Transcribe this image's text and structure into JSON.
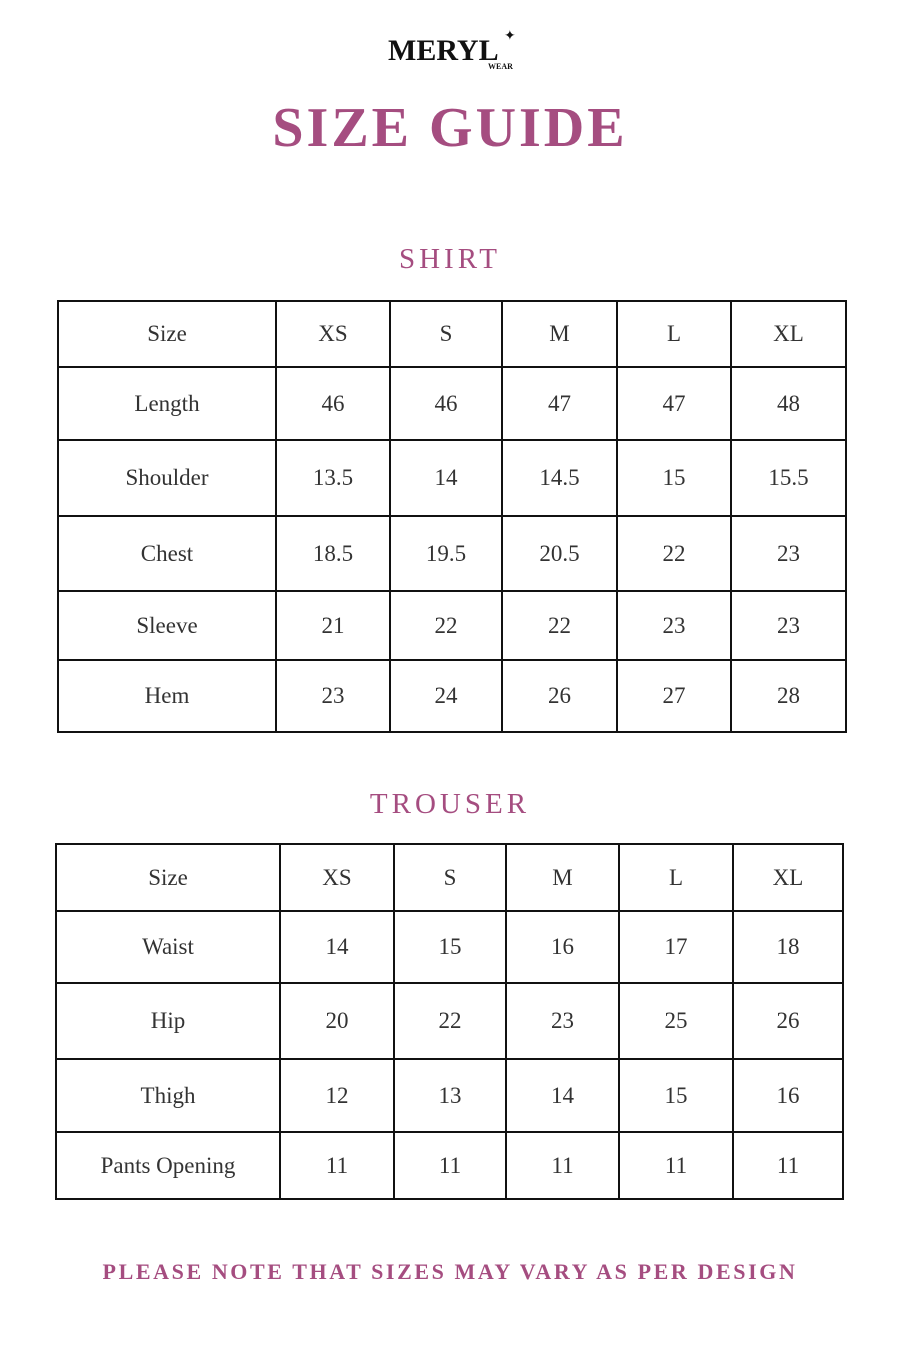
{
  "brand": {
    "logo": "MERYL",
    "logo_sub": "WEAR"
  },
  "title": "SIZE GUIDE",
  "shirt": {
    "heading": "SHIRT",
    "header": [
      "Size",
      "XS",
      "S",
      "M",
      "L",
      "XL"
    ],
    "rows": [
      [
        "Length",
        "46",
        "46",
        "47",
        "47",
        "48"
      ],
      [
        "Shoulder",
        "13.5",
        "14",
        "14.5",
        "15",
        "15.5"
      ],
      [
        "Chest",
        "18.5",
        "19.5",
        "20.5",
        "22",
        "23"
      ],
      [
        "Sleeve",
        "21",
        "22",
        "22",
        "23",
        "23"
      ],
      [
        "Hem",
        "23",
        "24",
        "26",
        "27",
        "28"
      ]
    ]
  },
  "trouser": {
    "heading": "TROUSER",
    "header": [
      "Size",
      "XS",
      "S",
      "M",
      "L",
      "XL"
    ],
    "rows": [
      [
        "Waist",
        "14",
        "15",
        "16",
        "17",
        "18"
      ],
      [
        "Hip",
        "20",
        "22",
        "23",
        "25",
        "26"
      ],
      [
        "Thigh",
        "12",
        "13",
        "14",
        "15",
        "16"
      ],
      [
        "Pants Opening",
        "11",
        "11",
        "11",
        "11",
        "11"
      ]
    ]
  },
  "note": "PLEASE NOTE THAT SIZES MAY VARY AS PER DESIGN",
  "colors": {
    "accent": "#a54d80"
  }
}
